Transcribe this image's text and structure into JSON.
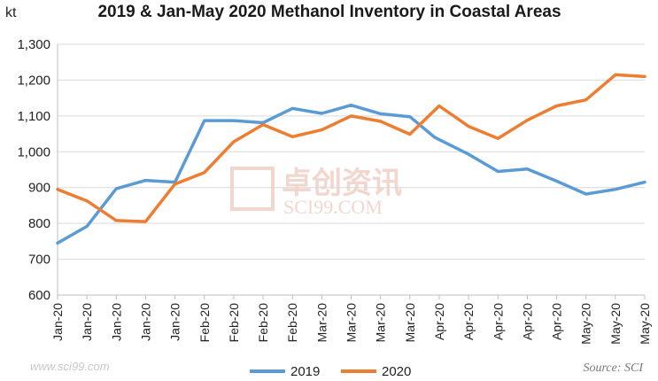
{
  "chart_data": {
    "type": "line",
    "title": "2019 & Jan-May 2020 Methanol Inventory in Coastal Areas",
    "ylabel": "kt",
    "xlabel": "",
    "ylim": [
      600,
      1300
    ],
    "yticks": [
      "600",
      "700",
      "800",
      "900",
      "1,000",
      "1,100",
      "1,200",
      "1,300"
    ],
    "categories": [
      "Jan-20",
      "Jan-20",
      "Jan-20",
      "Jan-20",
      "Jan-20",
      "Feb-20",
      "Feb-20",
      "Feb-20",
      "Feb-20",
      "Mar-20",
      "Mar-20",
      "Mar-20",
      "Mar-20",
      "Apr-20",
      "Apr-20",
      "Apr-20",
      "Apr-20",
      "Apr-20",
      "May-20",
      "May-20",
      "May-20"
    ],
    "series": [
      {
        "name": "2019",
        "color": "#5b9bd5",
        "x": [
          0,
          1,
          2,
          3,
          4,
          5,
          6,
          7,
          8,
          9,
          10,
          11,
          12,
          12.85,
          14,
          15,
          16,
          17,
          18,
          19,
          20
        ],
        "values": [
          745,
          792,
          897,
          920,
          915,
          1087,
          1087,
          1081,
          1121,
          1107,
          1130,
          1106,
          1098,
          1040,
          993,
          945,
          952,
          918,
          882,
          895,
          915
        ]
      },
      {
        "name": "2020",
        "color": "#ed7d31",
        "x": [
          0,
          1,
          2,
          3,
          4,
          5,
          6,
          7,
          8,
          9,
          10,
          11,
          12,
          13,
          14,
          15,
          16,
          17,
          18,
          19,
          20
        ],
        "values": [
          895,
          863,
          808,
          805,
          910,
          942,
          1028,
          1076,
          1042,
          1061,
          1100,
          1085,
          1049,
          1128,
          1071,
          1037,
          1088,
          1128,
          1145,
          1215,
          1210
        ]
      }
    ],
    "grid": true,
    "legend_position": "bottom"
  },
  "watermark": {
    "text_cn": "卓创资讯",
    "text_en": "SCI99.COM",
    "corner_text": "www.sci99.com"
  },
  "source": "Source: SCI"
}
